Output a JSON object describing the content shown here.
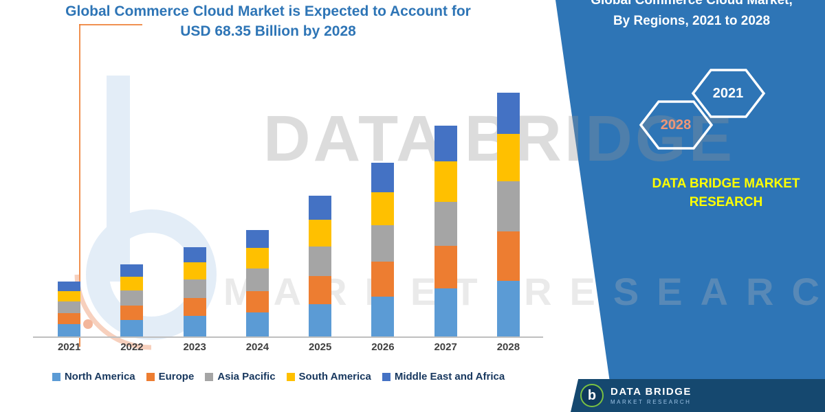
{
  "header": {
    "title_line1": "Global Commerce Cloud Market is Expected to Account for",
    "title_line2": "USD 68.35 Billion by 2028"
  },
  "side_panel": {
    "title_line1": "Global Commerce Cloud Market,",
    "title_line2": "By Regions, 2021 to 2028",
    "hexagons": [
      {
        "label": "2028"
      },
      {
        "label": "2021"
      }
    ],
    "brand_line1": "DATA BRIDGE MARKET",
    "brand_line2": "RESEARCH",
    "footer_brand": "DATA BRIDGE",
    "footer_sub": "MARKET RESEARCH",
    "footer_logo_letter": "b"
  },
  "watermark": {
    "line1": "DATA BRIDGE",
    "line2": "MARKET RESEARCH"
  },
  "colors": {
    "panel_blue": "#2E75B6",
    "title_blue": "#2E75B6",
    "brand_yellow": "#FFFF00",
    "hex_2028_orange": "#EE9678"
  },
  "chart_data": {
    "type": "bar",
    "stacked": true,
    "title": "Global Commerce Cloud Market is Expected to Account for USD 68.35 Billion by 2028",
    "unit": "USD Billion",
    "categories": [
      "2021",
      "2022",
      "2023",
      "2024",
      "2025",
      "2026",
      "2027",
      "2028"
    ],
    "series": [
      {
        "name": "North America",
        "color": "#5B9BD5",
        "values": [
          3.5,
          4.6,
          5.7,
          6.8,
          9.0,
          11.1,
          13.5,
          15.6
        ]
      },
      {
        "name": "Europe",
        "color": "#ED7D31",
        "values": [
          3.1,
          4.1,
          5.1,
          6.0,
          8.0,
          9.9,
          12.0,
          13.8
        ]
      },
      {
        "name": "Asia Pacific",
        "color": "#A5A5A5",
        "values": [
          3.2,
          4.2,
          5.2,
          6.2,
          8.2,
          10.1,
          12.3,
          14.2
        ]
      },
      {
        "name": "South America",
        "color": "#FFC000",
        "values": [
          3.0,
          3.9,
          4.8,
          5.8,
          7.6,
          9.4,
          11.4,
          13.2
        ]
      },
      {
        "name": "Middle East and Africa",
        "color": "#4472C4",
        "values": [
          2.6,
          3.4,
          4.2,
          5.0,
          6.7,
          8.2,
          9.9,
          11.55
        ]
      }
    ],
    "totals": [
      15.4,
      20.2,
      25.0,
      29.8,
      39.5,
      48.7,
      59.1,
      68.35
    ],
    "highlight_total": "2028 total = USD 68.35 Billion",
    "ylim": [
      0,
      70
    ],
    "grid": false,
    "legend_position": "bottom",
    "x_axis": "Year"
  }
}
